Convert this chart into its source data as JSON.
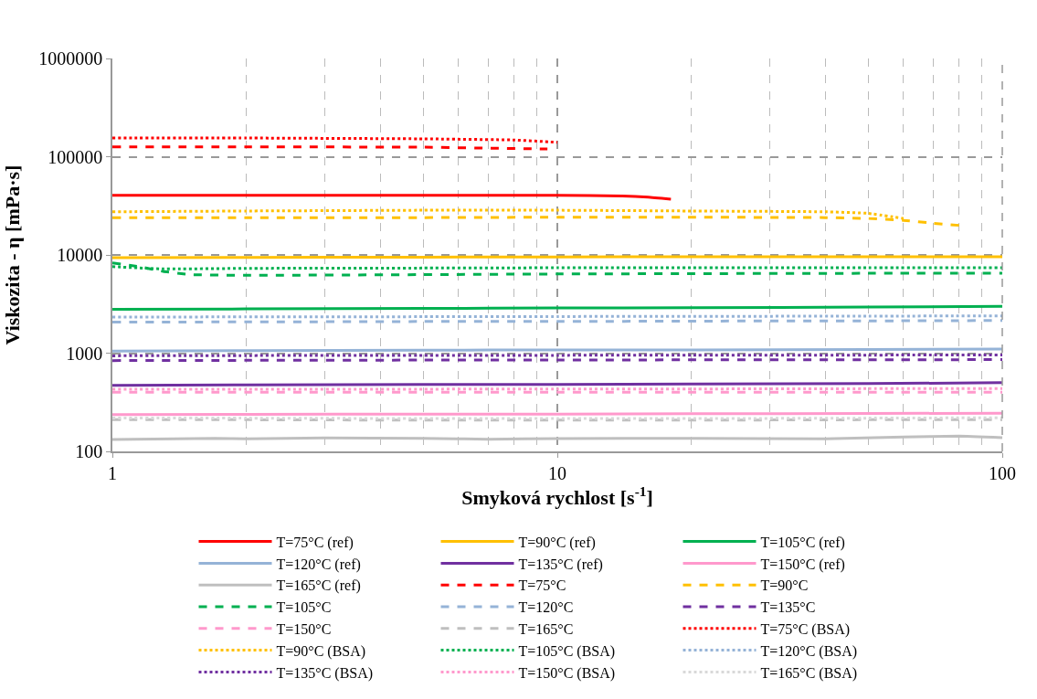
{
  "chart_data": {
    "type": "line",
    "xlabel": "Smyková rychlost [s$^{-1}$]",
    "ylabel": "Viskozita - η [mPa·s]",
    "log": "xy",
    "xlim": [
      1,
      100
    ],
    "xticks": [
      1,
      10,
      100
    ],
    "ylim": [
      100,
      1000000
    ],
    "yticks": [
      100,
      1000,
      10000,
      100000,
      1000000
    ],
    "grid": true,
    "legend": "bottom",
    "marker": "none",
    "series": [
      {
        "name": "T=75°C (ref)",
        "color": "#ff0000",
        "line_style": "solid",
        "x": [
          1,
          2,
          5,
          10,
          14,
          16,
          18
        ],
        "values": [
          40400,
          40400,
          40400,
          40400,
          39800,
          38800,
          37000
        ]
      },
      {
        "name": "T=90°C (ref)",
        "color": "#ffc000",
        "line_style": "solid",
        "x": [
          1,
          2,
          5,
          10,
          20,
          50,
          100
        ],
        "values": [
          9400,
          9450,
          9500,
          9550,
          9600,
          9600,
          9600
        ]
      },
      {
        "name": "T=105°C (ref)",
        "color": "#00b050",
        "line_style": "solid",
        "x": [
          1,
          2,
          5,
          10,
          20,
          50,
          100
        ],
        "values": [
          2800,
          2820,
          2850,
          2880,
          2900,
          2950,
          3000
        ]
      },
      {
        "name": "T=120°C (ref)",
        "color": "#95b3d7",
        "line_style": "solid",
        "x": [
          1,
          2,
          5,
          10,
          20,
          50,
          100
        ],
        "values": [
          1050,
          1060,
          1070,
          1080,
          1080,
          1090,
          1100
        ]
      },
      {
        "name": "T=135°C (ref)",
        "color": "#7030a0",
        "line_style": "solid",
        "x": [
          1,
          2,
          5,
          10,
          20,
          50,
          100
        ],
        "values": [
          470,
          475,
          480,
          480,
          485,
          490,
          500
        ]
      },
      {
        "name": "T=150°C (ref)",
        "color": "#ff99cc",
        "line_style": "solid",
        "x": [
          1,
          2,
          5,
          10,
          20,
          50,
          100
        ],
        "values": [
          237,
          238,
          240,
          240,
          242,
          243,
          245
        ]
      },
      {
        "name": "T=165°C (ref)",
        "color": "#bfbfbf",
        "line_style": "solid",
        "x": [
          1,
          1.7,
          2,
          3,
          5,
          7,
          10,
          20,
          40,
          60,
          80,
          100
        ],
        "values": [
          132,
          136,
          134,
          137,
          136,
          133,
          135,
          136,
          134,
          140,
          143,
          138
        ]
      },
      {
        "name": "T=75°C",
        "color": "#ff0000",
        "line_style": "dashed",
        "x": [
          1,
          2,
          5,
          7,
          9.5
        ],
        "values": [
          126000,
          126000,
          125000,
          122000,
          120000
        ]
      },
      {
        "name": "T=90°C",
        "color": "#ffc000",
        "line_style": "dashed",
        "x": [
          1,
          2,
          5,
          10,
          20,
          40,
          50,
          60,
          70,
          80
        ],
        "values": [
          23900,
          24000,
          24000,
          24200,
          24200,
          24000,
          23500,
          22500,
          21000,
          20000
        ]
      },
      {
        "name": "T=105°C",
        "color": "#00b050",
        "line_style": "dashed",
        "x": [
          1,
          1.15,
          1.3,
          1.5,
          2,
          5,
          10,
          20,
          50,
          100
        ],
        "values": [
          8300,
          7600,
          6800,
          6300,
          6200,
          6300,
          6400,
          6450,
          6500,
          6500
        ]
      },
      {
        "name": "T=120°C",
        "color": "#95b3d7",
        "line_style": "dashed",
        "x": [
          1,
          2,
          5,
          10,
          20,
          50,
          100
        ],
        "values": [
          2070,
          2080,
          2100,
          2100,
          2120,
          2130,
          2150
        ]
      },
      {
        "name": "T=135°C",
        "color": "#7030a0",
        "line_style": "dashed",
        "x": [
          1,
          2,
          5,
          10,
          20,
          50,
          100
        ],
        "values": [
          840,
          845,
          850,
          850,
          855,
          855,
          860
        ]
      },
      {
        "name": "T=150°C",
        "color": "#ff99cc",
        "line_style": "dashed",
        "x": [
          1,
          2,
          5,
          10,
          20,
          50,
          100
        ],
        "values": [
          400,
          400,
          400,
          400,
          400,
          400,
          400
        ]
      },
      {
        "name": "T=165°C",
        "color": "#bfbfbf",
        "line_style": "dashed",
        "x": [
          1,
          2,
          5,
          10,
          20,
          50,
          100
        ],
        "values": [
          210,
          210,
          208,
          208,
          208,
          210,
          210
        ]
      },
      {
        "name": "T=75°C (BSA)",
        "color": "#ff0000",
        "line_style": "dotted",
        "x": [
          1,
          2,
          5,
          8,
          10
        ],
        "values": [
          155000,
          155000,
          152000,
          148000,
          140000
        ]
      },
      {
        "name": "T=90°C (BSA)",
        "color": "#ffc000",
        "line_style": "dotted",
        "x": [
          1,
          2,
          5,
          10,
          20,
          40,
          50,
          60
        ],
        "values": [
          27500,
          28000,
          28500,
          28500,
          28000,
          27500,
          26500,
          23500
        ]
      },
      {
        "name": "T=105°C (BSA)",
        "color": "#00b050",
        "line_style": "dotted",
        "x": [
          1,
          1.3,
          2,
          5,
          10,
          20,
          50,
          100
        ],
        "values": [
          7600,
          7200,
          7300,
          7350,
          7400,
          7400,
          7400,
          7400
        ]
      },
      {
        "name": "T=120°C (BSA)",
        "color": "#95b3d7",
        "line_style": "dotted",
        "x": [
          1,
          2,
          5,
          10,
          20,
          50,
          100
        ],
        "values": [
          2330,
          2340,
          2350,
          2360,
          2370,
          2380,
          2400
        ]
      },
      {
        "name": "T=135°C (BSA)",
        "color": "#7030a0",
        "line_style": "dotted",
        "x": [
          1,
          2,
          5,
          10,
          20,
          50,
          100
        ],
        "values": [
          940,
          945,
          950,
          950,
          955,
          955,
          960
        ]
      },
      {
        "name": "T=150°C (BSA)",
        "color": "#ff99cc",
        "line_style": "dotted",
        "x": [
          1,
          2,
          5,
          10,
          20,
          50,
          100
        ],
        "values": [
          430,
          430,
          430,
          432,
          432,
          435,
          435
        ]
      },
      {
        "name": "T=165°C (BSA)",
        "color": "#d9d9d9",
        "line_style": "dotted",
        "x": [
          1,
          2,
          5,
          10,
          20,
          50,
          100
        ],
        "values": [
          218,
          218,
          216,
          216,
          216,
          218,
          220
        ]
      }
    ]
  }
}
